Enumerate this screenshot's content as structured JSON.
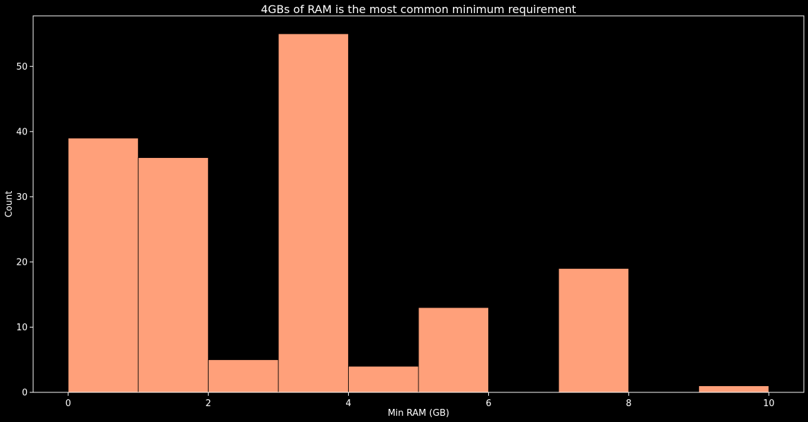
{
  "chart_data": {
    "type": "bar",
    "title": "4GBs of RAM is the most common minimum requirement",
    "xlabel": "Min RAM (GB)",
    "ylabel": "Count",
    "bins": [
      {
        "start": 0,
        "end": 1,
        "count": 39
      },
      {
        "start": 1,
        "end": 2,
        "count": 36
      },
      {
        "start": 2,
        "end": 3,
        "count": 5
      },
      {
        "start": 3,
        "end": 4,
        "count": 55
      },
      {
        "start": 4,
        "end": 5,
        "count": 4
      },
      {
        "start": 5,
        "end": 6,
        "count": 13
      },
      {
        "start": 6,
        "end": 7,
        "count": 0
      },
      {
        "start": 7,
        "end": 8,
        "count": 19
      },
      {
        "start": 8,
        "end": 9,
        "count": 0
      },
      {
        "start": 9,
        "end": 10,
        "count": 1
      }
    ],
    "xlim": [
      -0.5,
      10.5
    ],
    "ylim": [
      0,
      57.75
    ],
    "xticks": [
      "0",
      "2",
      "4",
      "6",
      "8",
      "10"
    ],
    "yticks": [
      "0",
      "10",
      "20",
      "30",
      "40",
      "50"
    ],
    "bar_color": "#ffa07a",
    "edge_color": "#000000",
    "axis_color": "#ffffff",
    "background": "#000000",
    "grid": false
  }
}
